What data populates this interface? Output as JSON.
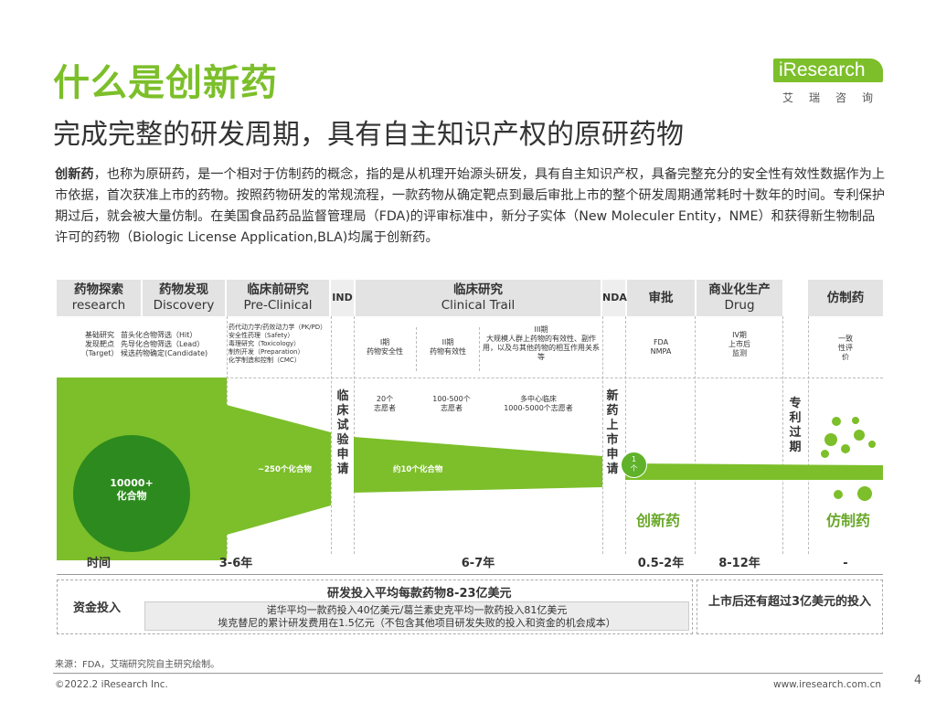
{
  "header": {
    "title": "什么是创新药",
    "subtitle": "完成完整的研发周期，具有自主知识产权的原研药物",
    "logo_text": "iResearch",
    "logo_sub": "艾瑞咨询"
  },
  "intro": {
    "lead": "创新药",
    "text": "，也称为原研药，是一个相对于仿制药的概念，指的是从机理开始源头研发，具有自主知识产权，具备完整充分的安全性有效性数据作为上市依据，首次获准上市的药物。按照药物研发的常规流程，一款药物从确定靶点到最后审批上市的整个研发周期通常耗时十数年的时间。专利保护期过后，就会被大量仿制。在美国食品药品监督管理局（FDA)的评审标准中，新分子实体（New Moleculer Entity，NME）和获得新生物制品许可的药物（Biologic License Application,BLA)均属于创新药。"
  },
  "stages": {
    "research": {
      "cn": "药物探索",
      "en": "research"
    },
    "discovery": {
      "cn": "药物发现",
      "en": "Discovery"
    },
    "preclinical": {
      "cn": "临床前研究",
      "en": "Pre-Clinical"
    },
    "ind": "IND",
    "clinical": {
      "cn": "临床研究",
      "en": "Clinical Trail"
    },
    "nda": "NDA",
    "approval": "审批",
    "commercial": {
      "cn": "商业化生产",
      "en": "Drug"
    },
    "generic": "仿制药"
  },
  "details": {
    "research": "基础研究\n发现靶点\n（Target）",
    "discovery": "苗头化合物筛选（Hit）\n先导化合物筛选（Lead）\n候选药物确定(Candidate)",
    "preclinical": "药代动力学/药效动力学（PK/PD）\n安全性药理（Safety）\n毒理研究（Toxicology）\n制剂开发（Preparation）\n化学制造和控制（CMC）",
    "phase1_title": "I期",
    "phase1_desc": "药物安全性",
    "phase2_title": "II期",
    "phase2_desc": "药物有效性",
    "phase3_title": "III期",
    "phase3_desc": "大规模人群上药物的有效性、副作用，以及与其他药物的相互作用关系等",
    "approval": "FDA\nNMPA",
    "phase4": "IV期\n上市后\n监测",
    "generic": "一致\n性评\n价"
  },
  "vertical": {
    "trial_application": "临床试验申请",
    "new_drug_application": "新药上市申请",
    "patent_expiry": "专利过期"
  },
  "volunteers": {
    "phase1": "20个\n志愿者",
    "phase2": "100-500个\n志愿者",
    "phase3": "多中心临床\n1000-5000个志愿者"
  },
  "funnel": {
    "start": "10000+\n化合物",
    "preclinical": "~250个化合物",
    "clinical": "约10个化合物",
    "final": "1\n个",
    "innovative_label": "创新药",
    "generic_label": "仿制药"
  },
  "time": {
    "label": "时间",
    "discovery": "3-6年",
    "clinical": "6-7年",
    "approval": "0.5-2年",
    "commercial": "8-12年",
    "generic": "-"
  },
  "funding": {
    "label": "资金投入",
    "headline": "研发投入平均每款药物8-23亿美元",
    "detail1": "诺华平均一款药投入40亿美元/葛兰素史克平均一款药投入81亿美元",
    "detail2": "埃克替尼的累计研发费用在1.5亿元（不包含其他项目研发失败的投入和资金的机会成本）",
    "post_market": "上市后还有超过3亿美元的投入"
  },
  "footer": {
    "source": "来源：FDA，艾瑞研究院自主研究绘制。",
    "copyright": "©2022.2 iResearch Inc.",
    "website": "www.iresearch.com.cn",
    "page": "4"
  },
  "colors": {
    "accent": "#7cbf2a",
    "dark_green": "#2d8a1e"
  }
}
